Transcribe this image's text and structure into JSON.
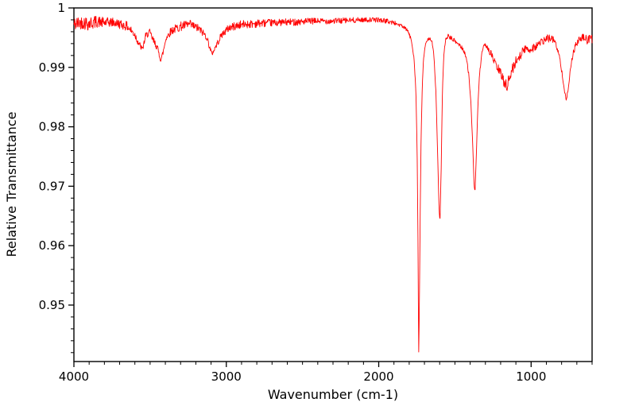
{
  "figure": {
    "background": "#ffffff",
    "frame_color": "#000000",
    "line_color": "#ff0000"
  },
  "chart_data": {
    "type": "line",
    "title": "",
    "xlabel": "Wavenumber (cm-1)",
    "ylabel": "Relative Transmittance",
    "grid": false,
    "legend": "none",
    "x_axis": {
      "left_value": 4000,
      "right_value": 600,
      "reversed": true,
      "major_ticks": [
        4000,
        3000,
        2000,
        1000
      ],
      "major_tick_labels": [
        "4000",
        "3000",
        "2000",
        "1000"
      ],
      "minor_tick_interval": 100
    },
    "y_axis": {
      "min": 0.9405,
      "max": 1.0,
      "major_ticks": [
        1,
        0.99,
        0.98,
        0.97,
        0.96,
        0.95
      ],
      "major_tick_labels": [
        "1",
        "0.99",
        "0.98",
        "0.97",
        "0.96",
        "0.95"
      ],
      "minor_tick_interval": 0.002
    },
    "peaks": [
      {
        "wavenumber": 3550,
        "transmittance": 0.993
      },
      {
        "wavenumber": 3430,
        "transmittance": 0.991
      },
      {
        "wavenumber": 3095,
        "transmittance": 0.992
      },
      {
        "wavenumber": 1738,
        "transmittance": 0.9412
      },
      {
        "wavenumber": 1600,
        "transmittance": 0.963
      },
      {
        "wavenumber": 1370,
        "transmittance": 0.9685
      },
      {
        "wavenumber": 765,
        "transmittance": 0.984
      }
    ],
    "series": [
      {
        "name": "IR spectrum",
        "color": "#ff0000",
        "noise_seed": 42,
        "sample_step": 2.5,
        "anchors": [
          [
            4000,
            0.9972,
            0.0013
          ],
          [
            3950,
            0.9976,
            0.0011
          ],
          [
            3900,
            0.9974,
            0.0013
          ],
          [
            3850,
            0.9977,
            0.001
          ],
          [
            3800,
            0.9975,
            0.0009
          ],
          [
            3750,
            0.9976,
            0.0008
          ],
          [
            3700,
            0.9973,
            0.0008
          ],
          [
            3650,
            0.9969,
            0.0008
          ],
          [
            3600,
            0.9955,
            0.0007
          ],
          [
            3570,
            0.9938,
            0.0006
          ],
          [
            3550,
            0.993,
            0.0005
          ],
          [
            3530,
            0.9952,
            0.0006
          ],
          [
            3505,
            0.996,
            0.0006
          ],
          [
            3480,
            0.9945,
            0.0007
          ],
          [
            3455,
            0.9935,
            0.0006
          ],
          [
            3430,
            0.9912,
            0.0004
          ],
          [
            3415,
            0.9925,
            0.0005
          ],
          [
            3395,
            0.995,
            0.0006
          ],
          [
            3360,
            0.9962,
            0.0007
          ],
          [
            3300,
            0.9969,
            0.0008
          ],
          [
            3240,
            0.9972,
            0.0008
          ],
          [
            3180,
            0.9965,
            0.0007
          ],
          [
            3130,
            0.9952,
            0.0006
          ],
          [
            3095,
            0.9922,
            0.0004
          ],
          [
            3060,
            0.994,
            0.0005
          ],
          [
            3030,
            0.9955,
            0.0006
          ],
          [
            2980,
            0.9967,
            0.0007
          ],
          [
            2900,
            0.9972,
            0.0007
          ],
          [
            2800,
            0.9974,
            0.0007
          ],
          [
            2700,
            0.9975,
            0.0006
          ],
          [
            2600,
            0.9976,
            0.0006
          ],
          [
            2500,
            0.9977,
            0.0006
          ],
          [
            2400,
            0.9978,
            0.0005
          ],
          [
            2300,
            0.9978,
            0.0005
          ],
          [
            2200,
            0.9979,
            0.0005
          ],
          [
            2100,
            0.998,
            0.0004
          ],
          [
            2000,
            0.998,
            0.0004
          ],
          [
            1950,
            0.9978,
            0.0004
          ],
          [
            1900,
            0.9975,
            0.0004
          ],
          [
            1850,
            0.997,
            0.0003
          ],
          [
            1810,
            0.9962,
            0.0003
          ],
          [
            1785,
            0.9945,
            0.0003
          ],
          [
            1768,
            0.9915,
            0.0002
          ],
          [
            1756,
            0.986,
            0.0002
          ],
          [
            1748,
            0.976,
            0.0001
          ],
          [
            1742,
            0.96,
            0.0001
          ],
          [
            1738,
            0.9412,
            0.0001
          ],
          [
            1734,
            0.948,
            0.0001
          ],
          [
            1728,
            0.965,
            0.0001
          ],
          [
            1722,
            0.978,
            0.0002
          ],
          [
            1714,
            0.987,
            0.0002
          ],
          [
            1706,
            0.9915,
            0.0002
          ],
          [
            1695,
            0.9935,
            0.0003
          ],
          [
            1682,
            0.9945,
            0.0003
          ],
          [
            1668,
            0.995,
            0.0003
          ],
          [
            1652,
            0.9945,
            0.0003
          ],
          [
            1638,
            0.992,
            0.0003
          ],
          [
            1625,
            0.986,
            0.0002
          ],
          [
            1614,
            0.976,
            0.0002
          ],
          [
            1604,
            0.966,
            0.0001
          ],
          [
            1598,
            0.964,
            0.0001
          ],
          [
            1590,
            0.973,
            0.0002
          ],
          [
            1582,
            0.986,
            0.0002
          ],
          [
            1572,
            0.9925,
            0.0002
          ],
          [
            1560,
            0.9947,
            0.0003
          ],
          [
            1545,
            0.9953,
            0.0003
          ],
          [
            1530,
            0.995,
            0.0004
          ],
          [
            1515,
            0.9947,
            0.0004
          ],
          [
            1500,
            0.9944,
            0.0004
          ],
          [
            1480,
            0.994,
            0.0004
          ],
          [
            1460,
            0.9935,
            0.0004
          ],
          [
            1440,
            0.9928,
            0.0004
          ],
          [
            1425,
            0.9915,
            0.0003
          ],
          [
            1410,
            0.989,
            0.0003
          ],
          [
            1396,
            0.9845,
            0.0002
          ],
          [
            1384,
            0.9775,
            0.0002
          ],
          [
            1374,
            0.97,
            0.0001
          ],
          [
            1368,
            0.969,
            0.0001
          ],
          [
            1360,
            0.975,
            0.0002
          ],
          [
            1350,
            0.983,
            0.0002
          ],
          [
            1338,
            0.989,
            0.0003
          ],
          [
            1325,
            0.992,
            0.0004
          ],
          [
            1310,
            0.9935,
            0.0004
          ],
          [
            1295,
            0.9938,
            0.0005
          ],
          [
            1280,
            0.993,
            0.0005
          ],
          [
            1262,
            0.9922,
            0.0006
          ],
          [
            1245,
            0.9912,
            0.0007
          ],
          [
            1228,
            0.9902,
            0.0008
          ],
          [
            1210,
            0.9895,
            0.0008
          ],
          [
            1192,
            0.9885,
            0.0009
          ],
          [
            1175,
            0.9875,
            0.001
          ],
          [
            1158,
            0.987,
            0.001
          ],
          [
            1142,
            0.9882,
            0.001
          ],
          [
            1125,
            0.9895,
            0.001
          ],
          [
            1108,
            0.9905,
            0.0009
          ],
          [
            1090,
            0.9915,
            0.0009
          ],
          [
            1070,
            0.9922,
            0.0009
          ],
          [
            1050,
            0.9928,
            0.0008
          ],
          [
            1030,
            0.9932,
            0.0008
          ],
          [
            1010,
            0.993,
            0.0008
          ],
          [
            990,
            0.9933,
            0.0008
          ],
          [
            968,
            0.9936,
            0.0008
          ],
          [
            945,
            0.994,
            0.0007
          ],
          [
            920,
            0.9944,
            0.0007
          ],
          [
            895,
            0.9948,
            0.0007
          ],
          [
            870,
            0.995,
            0.0006
          ],
          [
            848,
            0.9945,
            0.0006
          ],
          [
            828,
            0.9932,
            0.0005
          ],
          [
            810,
            0.9912,
            0.0004
          ],
          [
            795,
            0.9888,
            0.0004
          ],
          [
            782,
            0.9862,
            0.0003
          ],
          [
            770,
            0.9845,
            0.0002
          ],
          [
            760,
            0.9858,
            0.0003
          ],
          [
            748,
            0.9885,
            0.0004
          ],
          [
            735,
            0.991,
            0.0004
          ],
          [
            720,
            0.9928,
            0.0005
          ],
          [
            702,
            0.994,
            0.0006
          ],
          [
            682,
            0.9947,
            0.0006
          ],
          [
            660,
            0.995,
            0.0007
          ],
          [
            635,
            0.9946,
            0.0008
          ],
          [
            618,
            0.995,
            0.0008
          ],
          [
            600,
            0.9947,
            0.0009
          ]
        ]
      }
    ]
  }
}
